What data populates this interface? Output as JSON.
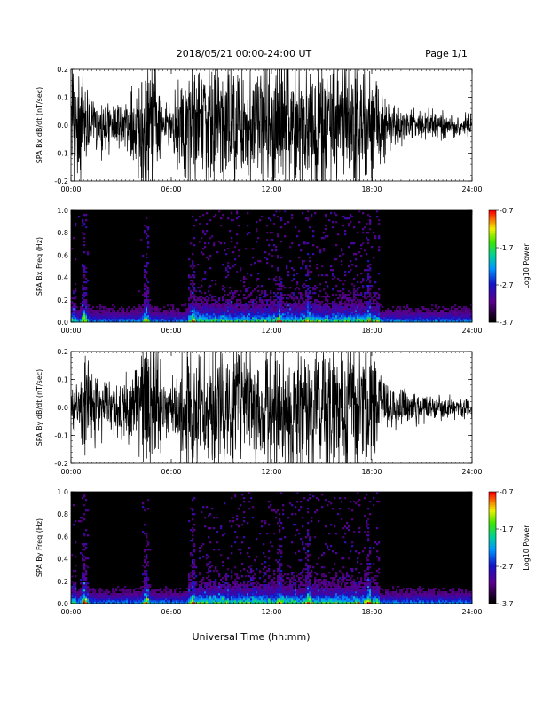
{
  "header": {
    "title": "2018/05/21  00:00-24:00 UT",
    "page": "Page 1/1"
  },
  "xaxis": {
    "label": "Universal Time (hh:mm)",
    "ticks": [
      "00:00",
      "06:00",
      "12:00",
      "18:00",
      "24:00"
    ],
    "range_hours": [
      0,
      24
    ]
  },
  "chart_data": [
    {
      "type": "line",
      "ylabel": "SPA Bx dB/dt (nT/sec)",
      "ylim": [
        -0.2,
        0.2
      ],
      "yticks": [
        "0.2",
        "0.1",
        "0.0",
        "-0.1",
        "-0.2"
      ],
      "envelope": {
        "hours": [
          0,
          0.5,
          1,
          1.5,
          2,
          2.5,
          3,
          3.5,
          4,
          4.5,
          5,
          5.5,
          6,
          6.5,
          7,
          7.5,
          8,
          8.5,
          9,
          9.5,
          10,
          10.5,
          11,
          11.5,
          12,
          12.5,
          13,
          13.5,
          14,
          14.5,
          15,
          15.5,
          16,
          16.5,
          17,
          17.5,
          18,
          18.5,
          19,
          19.5,
          20,
          20.5,
          21,
          21.5,
          22,
          22.5,
          23,
          23.5,
          24
        ],
        "amplitude": [
          0.2,
          0.2,
          0.1,
          0.07,
          0.09,
          0.07,
          0.06,
          0.08,
          0.13,
          0.2,
          0.2,
          0.08,
          0.06,
          0.15,
          0.2,
          0.2,
          0.2,
          0.2,
          0.2,
          0.2,
          0.2,
          0.18,
          0.18,
          0.2,
          0.2,
          0.2,
          0.2,
          0.2,
          0.2,
          0.2,
          0.2,
          0.2,
          0.2,
          0.2,
          0.2,
          0.2,
          0.2,
          0.12,
          0.07,
          0.06,
          0.05,
          0.05,
          0.04,
          0.04,
          0.04,
          0.035,
          0.03,
          0.03,
          0.03
        ]
      }
    },
    {
      "type": "heatmap",
      "ylabel": "SPA Bx Freq (Hz)",
      "ylim": [
        0,
        1.0
      ],
      "yticks": [
        "1.0",
        "0.8",
        "0.6",
        "0.4",
        "0.2",
        "0.0"
      ],
      "colorbar": {
        "label": "Log10 Power",
        "ticks": [
          "-0.7",
          "-1.7",
          "-2.7",
          "-3.7"
        ],
        "range": [
          -3.7,
          -0.7
        ]
      },
      "bursts_hours": [
        0.8,
        4.5,
        7.3,
        12.5,
        14.2,
        17.8
      ]
    },
    {
      "type": "line",
      "ylabel": "SPA By dB/dt (nT/sec)",
      "ylim": [
        -0.2,
        0.2
      ],
      "yticks": [
        "0.2",
        "0.1",
        "0.0",
        "-0.1",
        "-0.2"
      ],
      "envelope": {
        "hours": [
          0,
          0.5,
          1,
          1.5,
          2,
          2.5,
          3,
          3.5,
          4,
          4.5,
          5,
          5.5,
          6,
          6.5,
          7,
          7.5,
          8,
          8.5,
          9,
          9.5,
          10,
          10.5,
          11,
          11.5,
          12,
          12.5,
          13,
          13.5,
          14,
          14.5,
          15,
          15.5,
          16,
          16.5,
          17,
          17.5,
          18,
          18.5,
          19,
          19.5,
          20,
          20.5,
          21,
          21.5,
          22,
          22.5,
          23,
          23.5,
          24
        ],
        "amplitude": [
          0.05,
          0.09,
          0.2,
          0.12,
          0.08,
          0.07,
          0.09,
          0.09,
          0.15,
          0.2,
          0.2,
          0.1,
          0.07,
          0.13,
          0.2,
          0.2,
          0.2,
          0.2,
          0.2,
          0.2,
          0.2,
          0.18,
          0.15,
          0.2,
          0.2,
          0.2,
          0.2,
          0.2,
          0.2,
          0.2,
          0.2,
          0.2,
          0.2,
          0.2,
          0.2,
          0.2,
          0.2,
          0.1,
          0.07,
          0.06,
          0.05,
          0.05,
          0.04,
          0.04,
          0.035,
          0.035,
          0.03,
          0.03,
          0.03
        ]
      }
    },
    {
      "type": "heatmap",
      "ylabel": "SPA By Freq (Hz)",
      "ylim": [
        0,
        1.0
      ],
      "yticks": [
        "1.0",
        "0.8",
        "0.6",
        "0.4",
        "0.2",
        "0.0"
      ],
      "colorbar": {
        "label": "Log10 Power",
        "ticks": [
          "-0.7",
          "-1.7",
          "-2.7",
          "-3.7"
        ],
        "range": [
          -3.7,
          -0.7
        ]
      },
      "bursts_hours": [
        0.8,
        4.5,
        7.3,
        12.5,
        14.2,
        17.8
      ]
    }
  ]
}
